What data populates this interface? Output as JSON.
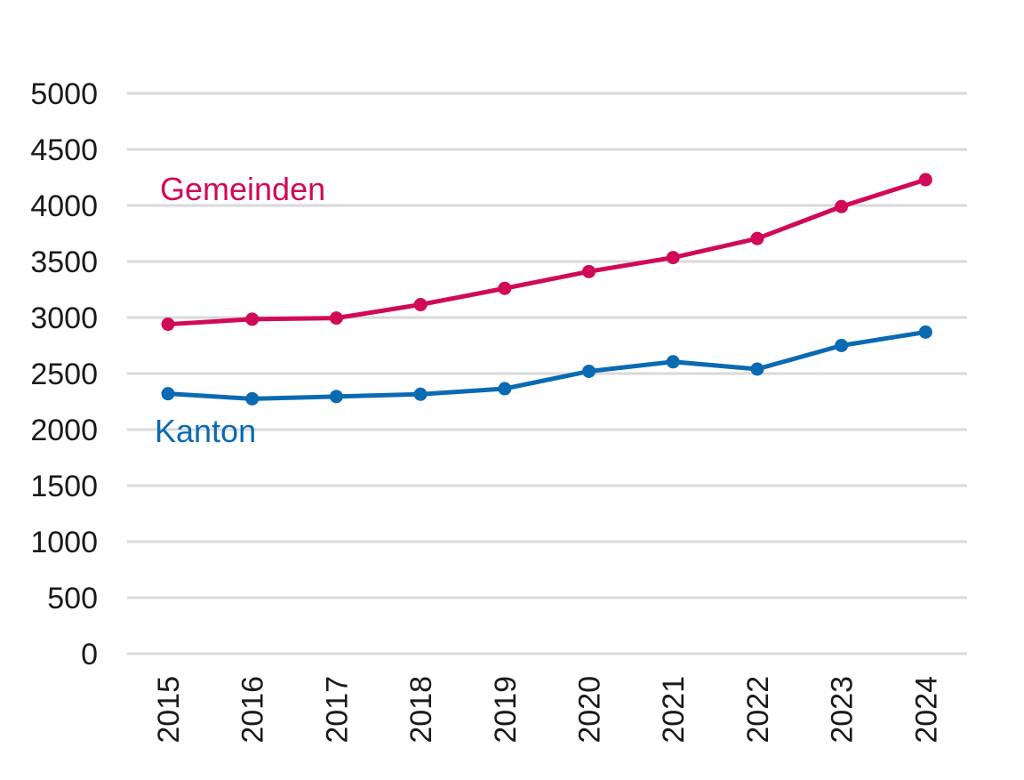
{
  "chart_data": {
    "type": "line",
    "title": "",
    "xlabel": "",
    "ylabel": "",
    "categories": [
      "2015",
      "2016",
      "2017",
      "2018",
      "2019",
      "2020",
      "2021",
      "2022",
      "2023",
      "2024"
    ],
    "ylim": [
      0,
      5000
    ],
    "yticks": [
      0,
      500,
      1000,
      1500,
      2000,
      2500,
      3000,
      3500,
      4000,
      4500,
      5000
    ],
    "grid": true,
    "legend": "inline labels",
    "series": [
      {
        "name": "Gemeinden",
        "color": "#d10a57",
        "values": [
          2940,
          2985,
          2995,
          3115,
          3260,
          3410,
          3535,
          3705,
          3990,
          4230
        ]
      },
      {
        "name": "Kanton",
        "color": "#0a6ab2",
        "values": [
          2320,
          2275,
          2295,
          2315,
          2365,
          2520,
          2605,
          2540,
          2750,
          2870
        ]
      }
    ]
  }
}
